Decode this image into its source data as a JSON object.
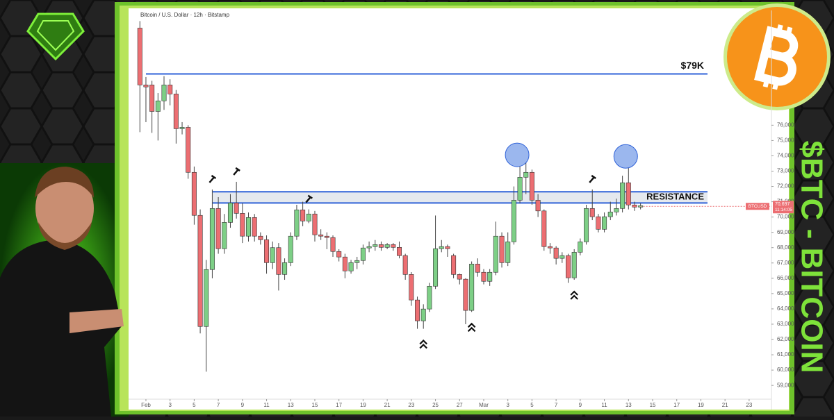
{
  "chart_data": {
    "type": "candlestick",
    "title": "Bitcoin / U.S. Dollar · 12h · Bitstamp",
    "series": [
      {
        "name": "BTCUSD",
        "up_color": "#7dcf86",
        "down_color": "#ec6e72",
        "open": [
          82345,
          78630,
          78630,
          76900,
          77590,
          78630,
          78040,
          75770,
          75860,
          72920,
          70110,
          62850,
          66570,
          70560,
          67930,
          69650,
          70920,
          70240,
          68750,
          69970,
          68750,
          68520,
          67020,
          68000,
          66250,
          67020,
          68750,
          70470,
          69740,
          70200,
          68840,
          68750,
          68660,
          67750,
          67390,
          66480,
          67020,
          67160,
          67980,
          68070,
          68200,
          68020,
          68200,
          68020,
          67480,
          66250,
          64580,
          63220,
          63990,
          65480,
          67930,
          68070,
          67480,
          66250,
          65940,
          63900,
          66930,
          66390,
          65800,
          66390,
          68750,
          67020,
          68380,
          71100,
          72600,
          72920,
          71100,
          70400,
          68070,
          67980,
          67300,
          67480,
          66030,
          67700,
          68380,
          70560,
          70020,
          69200,
          70020,
          70330,
          70560,
          72240,
          70790,
          70650
        ],
        "high": [
          82800,
          79150,
          78900,
          78100,
          79200,
          79000,
          78300,
          76200,
          76000,
          73300,
          70500,
          67200,
          71800,
          71300,
          70200,
          71500,
          72300,
          70900,
          70300,
          70200,
          69000,
          68800,
          68400,
          68300,
          67300,
          69000,
          70800,
          71000,
          70500,
          70400,
          69200,
          69000,
          68800,
          67900,
          67600,
          67200,
          67400,
          68200,
          68400,
          68500,
          68400,
          68300,
          68300,
          68400,
          67600,
          66400,
          64800,
          64300,
          65700,
          70100,
          68500,
          68200,
          67600,
          66300,
          66000,
          67100,
          67300,
          66600,
          66600,
          69700,
          69000,
          69000,
          72000,
          73700,
          74000,
          73100,
          71500,
          70500,
          68300,
          68100,
          67700,
          67600,
          67900,
          68600,
          70800,
          71800,
          70200,
          70300,
          71000,
          71200,
          72700,
          73600,
          71000,
          70900
        ],
        "low": [
          75545,
          76200,
          75500,
          75000,
          77000,
          77300,
          74800,
          75400,
          72500,
          69500,
          62400,
          59900,
          66000,
          67600,
          67600,
          69300,
          69900,
          68300,
          68400,
          68400,
          68200,
          66300,
          66600,
          65200,
          65900,
          66800,
          68500,
          69400,
          69600,
          68400,
          68500,
          67900,
          67400,
          67100,
          66000,
          66300,
          66600,
          66900,
          67700,
          67800,
          67800,
          67900,
          67800,
          67300,
          65900,
          64200,
          62700,
          62700,
          63800,
          65300,
          67700,
          67400,
          66000,
          65600,
          63000,
          63800,
          66100,
          65600,
          65500,
          66200,
          66700,
          66800,
          68200,
          70900,
          71500,
          70800,
          70000,
          67800,
          67600,
          66900,
          67000,
          65700,
          65900,
          67500,
          68200,
          69800,
          69000,
          69000,
          69800,
          70100,
          70300,
          70500,
          70400,
          70500
        ],
        "close": [
          78630,
          78500,
          76900,
          77590,
          78630,
          78040,
          75770,
          75860,
          72920,
          70110,
          62850,
          66570,
          70560,
          67930,
          69650,
          70920,
          70240,
          68750,
          69970,
          68750,
          68520,
          67020,
          68000,
          66250,
          67020,
          68750,
          70470,
          69740,
          70200,
          68840,
          68750,
          68660,
          67750,
          67390,
          66480,
          67020,
          67160,
          67980,
          68070,
          68200,
          68020,
          68200,
          68020,
          67480,
          66250,
          64580,
          63220,
          63990,
          65480,
          67930,
          68070,
          67930,
          66250,
          65940,
          63900,
          66930,
          66390,
          65800,
          66390,
          68750,
          67020,
          68380,
          71100,
          72600,
          72920,
          71100,
          70400,
          68070,
          67980,
          67300,
          67480,
          66030,
          67700,
          68380,
          70560,
          70020,
          69200,
          70020,
          70330,
          70560,
          72240,
          70790,
          70650,
          70740
        ]
      }
    ],
    "xlim": [
      -1.3,
      104.7
    ],
    "xticks": [
      {
        "value": 1,
        "label": "Feb"
      },
      {
        "value": 5,
        "label": "3"
      },
      {
        "value": 9,
        "label": "5"
      },
      {
        "value": 13,
        "label": "7"
      },
      {
        "value": 17,
        "label": "9"
      },
      {
        "value": 21,
        "label": "11"
      },
      {
        "value": 25,
        "label": "13"
      },
      {
        "value": 29,
        "label": "15"
      },
      {
        "value": 33,
        "label": "17"
      },
      {
        "value": 37,
        "label": "19"
      },
      {
        "value": 41,
        "label": "21"
      },
      {
        "value": 45,
        "label": "23"
      },
      {
        "value": 49,
        "label": "25"
      },
      {
        "value": 53,
        "label": "27"
      },
      {
        "value": 57,
        "label": "Mar"
      },
      {
        "value": 61,
        "label": "3"
      },
      {
        "value": 65,
        "label": "5"
      },
      {
        "value": 69,
        "label": "7"
      },
      {
        "value": 73,
        "label": "9"
      },
      {
        "value": 77,
        "label": "11"
      },
      {
        "value": 81,
        "label": "13"
      },
      {
        "value": 85,
        "label": "15"
      },
      {
        "value": 89,
        "label": "17"
      },
      {
        "value": 93,
        "label": "19"
      },
      {
        "value": 97,
        "label": "21"
      },
      {
        "value": 101,
        "label": "23"
      }
    ],
    "ylim": [
      58100,
      83500
    ],
    "yticks": [
      {
        "value": 59000,
        "label": "59,000"
      },
      {
        "value": 60000,
        "label": "60,000"
      },
      {
        "value": 61000,
        "label": "61,000"
      },
      {
        "value": 62000,
        "label": "62,000"
      },
      {
        "value": 63000,
        "label": "63,000"
      },
      {
        "value": 64000,
        "label": "64,000"
      },
      {
        "value": 65000,
        "label": "65,000"
      },
      {
        "value": 66000,
        "label": "66,000"
      },
      {
        "value": 67000,
        "label": "67,000"
      },
      {
        "value": 68000,
        "label": "68,000"
      },
      {
        "value": 69000,
        "label": "69,000"
      },
      {
        "value": 70000,
        "label": "70,000"
      },
      {
        "value": 71000,
        "label": "71,000"
      },
      {
        "value": 72000,
        "label": "72,000"
      },
      {
        "value": 73000,
        "label": "73,000"
      },
      {
        "value": 74000,
        "label": "74,000"
      },
      {
        "value": 75000,
        "label": "75,000"
      },
      {
        "value": 76000,
        "label": "76,000"
      }
    ],
    "levels": [
      {
        "value": 79350,
        "label": "$79K",
        "color": "#2f62d8"
      }
    ],
    "zone": {
      "high": 71650,
      "low": 70920,
      "label": "RESISTANCE",
      "color": "#2f62d8"
    },
    "last_price": {
      "value": 70697,
      "label": "70,697",
      "time": "11:14:05",
      "color": "#ec6e72"
    }
  },
  "side_title": "$BTC - BITCOIN"
}
